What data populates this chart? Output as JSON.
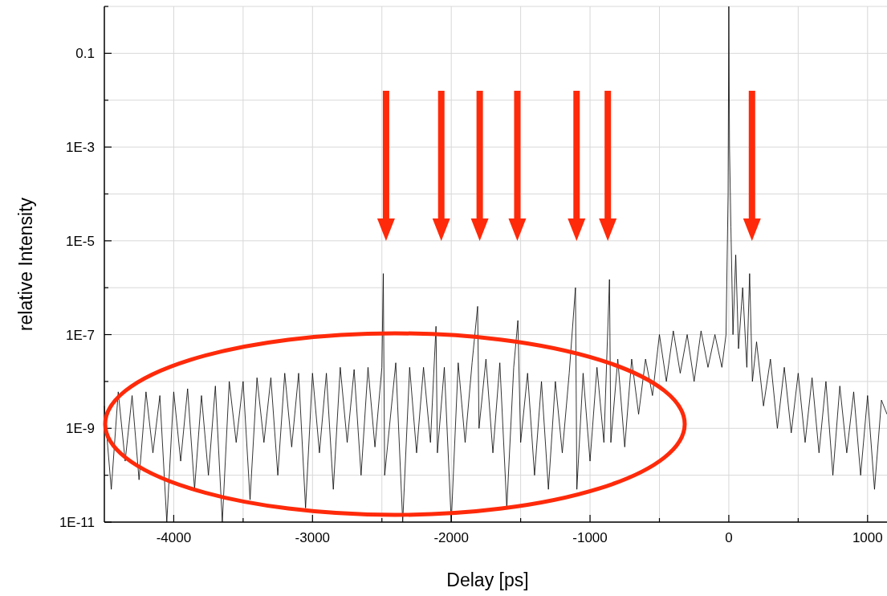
{
  "chart_data": {
    "type": "line",
    "xlabel": "Delay [ps]",
    "ylabel": "relative Intensity",
    "log": "y",
    "grid": true,
    "line_style": "solid",
    "xlim": [
      -4500,
      1140
    ],
    "ylim": [
      1e-11,
      1
    ],
    "xticks": [
      -4000,
      {
        "value": -3500,
        "label": null
      },
      -3000,
      {
        "value": -2500,
        "label": null
      },
      -2000,
      {
        "value": -1500,
        "label": null
      },
      -1000,
      {
        "value": -500,
        "label": null
      },
      0,
      {
        "value": 500,
        "label": null
      },
      1000
    ],
    "yticks": [
      {
        "value": 1,
        "label": null
      },
      {
        "value": 0.1,
        "label": "0.1"
      },
      {
        "value": 0.01,
        "label": null
      },
      {
        "value": 0.001,
        "label": "1E-3"
      },
      {
        "value": 0.0001,
        "label": null
      },
      {
        "value": 1e-05,
        "label": "1E-5"
      },
      {
        "value": 1e-06,
        "label": null
      },
      {
        "value": 1e-07,
        "label": "1E-7"
      },
      {
        "value": 1e-08,
        "label": null
      },
      {
        "value": 1e-09,
        "label": "1E-9"
      },
      {
        "value": 1e-10,
        "label": null
      },
      {
        "value": 1e-11,
        "label": "1E-11"
      }
    ],
    "series": [
      {
        "color": "#000000",
        "x": [
          -4500,
          -4450,
          -4400,
          -4350,
          -4300,
          -4250,
          -4200,
          -4150,
          -4100,
          -4050,
          -4000,
          -3950,
          -3900,
          -3850,
          -3800,
          -3750,
          -3700,
          -3650,
          -3600,
          -3550,
          -3500,
          -3450,
          -3400,
          -3350,
          -3300,
          -3250,
          -3200,
          -3150,
          -3100,
          -3050,
          -3000,
          -2950,
          -2900,
          -2850,
          -2800,
          -2750,
          -2700,
          -2650,
          -2600,
          -2550,
          -2500,
          -2490,
          -2480,
          -2400,
          -2350,
          -2300,
          -2250,
          -2200,
          -2150,
          -2110,
          -2100,
          -2050,
          -2000,
          -1950,
          -1900,
          -1850,
          -1810,
          -1800,
          -1750,
          -1700,
          -1650,
          -1600,
          -1550,
          -1520,
          -1500,
          -1450,
          -1400,
          -1350,
          -1300,
          -1250,
          -1200,
          -1150,
          -1105,
          -1095,
          -1050,
          -1000,
          -950,
          -900,
          -860,
          -850,
          -800,
          -750,
          -700,
          -650,
          -600,
          -550,
          -500,
          -450,
          -400,
          -350,
          -300,
          -250,
          -200,
          -150,
          -100,
          -50,
          -20,
          -5,
          0,
          5,
          15,
          30,
          50,
          70,
          100,
          130,
          150,
          170,
          200,
          250,
          300,
          350,
          400,
          450,
          500,
          550,
          600,
          650,
          700,
          750,
          800,
          850,
          900,
          950,
          1000,
          1050,
          1100,
          1140
        ],
        "values": [
          3e-09,
          5e-11,
          6e-09,
          2e-10,
          5e-09,
          8e-11,
          6e-09,
          3e-10,
          5e-09,
          1e-11,
          6e-09,
          2e-10,
          7e-09,
          5e-11,
          5e-09,
          1e-10,
          8e-09,
          1e-11,
          1e-08,
          5e-10,
          1e-08,
          3e-11,
          1.2e-08,
          5e-10,
          1.2e-08,
          1e-10,
          1.5e-08,
          4e-10,
          1.5e-08,
          2e-11,
          1.5e-08,
          3e-10,
          1.5e-08,
          5e-11,
          2e-08,
          5e-10,
          1.8e-08,
          1e-10,
          2e-08,
          4e-10,
          2e-08,
          2e-06,
          1e-10,
          2.5e-08,
          1e-11,
          2e-08,
          3e-10,
          2e-08,
          5e-10,
          1.5e-07,
          3e-10,
          2e-08,
          1e-11,
          2.5e-08,
          5e-10,
          2.5e-08,
          4e-07,
          1e-09,
          3e-08,
          3e-10,
          2.5e-08,
          2e-11,
          2e-08,
          2e-07,
          5e-10,
          1.5e-08,
          1e-10,
          1e-08,
          5e-11,
          1e-08,
          3e-10,
          1.5e-08,
          1e-06,
          5e-11,
          1.5e-08,
          2e-10,
          2e-08,
          5e-10,
          1.5e-06,
          5e-10,
          3e-08,
          4e-10,
          3e-08,
          2e-09,
          3e-08,
          5e-09,
          1e-07,
          1e-08,
          1.2e-07,
          1.5e-08,
          1e-07,
          1e-08,
          1.2e-07,
          2e-08,
          1e-07,
          2e-08,
          1e-07,
          0.0001,
          1,
          0.001,
          2e-05,
          1e-07,
          5e-06,
          5e-08,
          1e-06,
          2e-08,
          2e-06,
          1e-08,
          7e-08,
          3e-09,
          3e-08,
          1e-09,
          2e-08,
          8e-10,
          1.5e-08,
          5e-10,
          1.2e-08,
          3e-10,
          1e-08,
          1e-10,
          8e-09,
          3e-10,
          6e-09,
          1e-10,
          5e-09,
          5e-11,
          4e-09,
          2e-09
        ]
      }
    ]
  }
}
